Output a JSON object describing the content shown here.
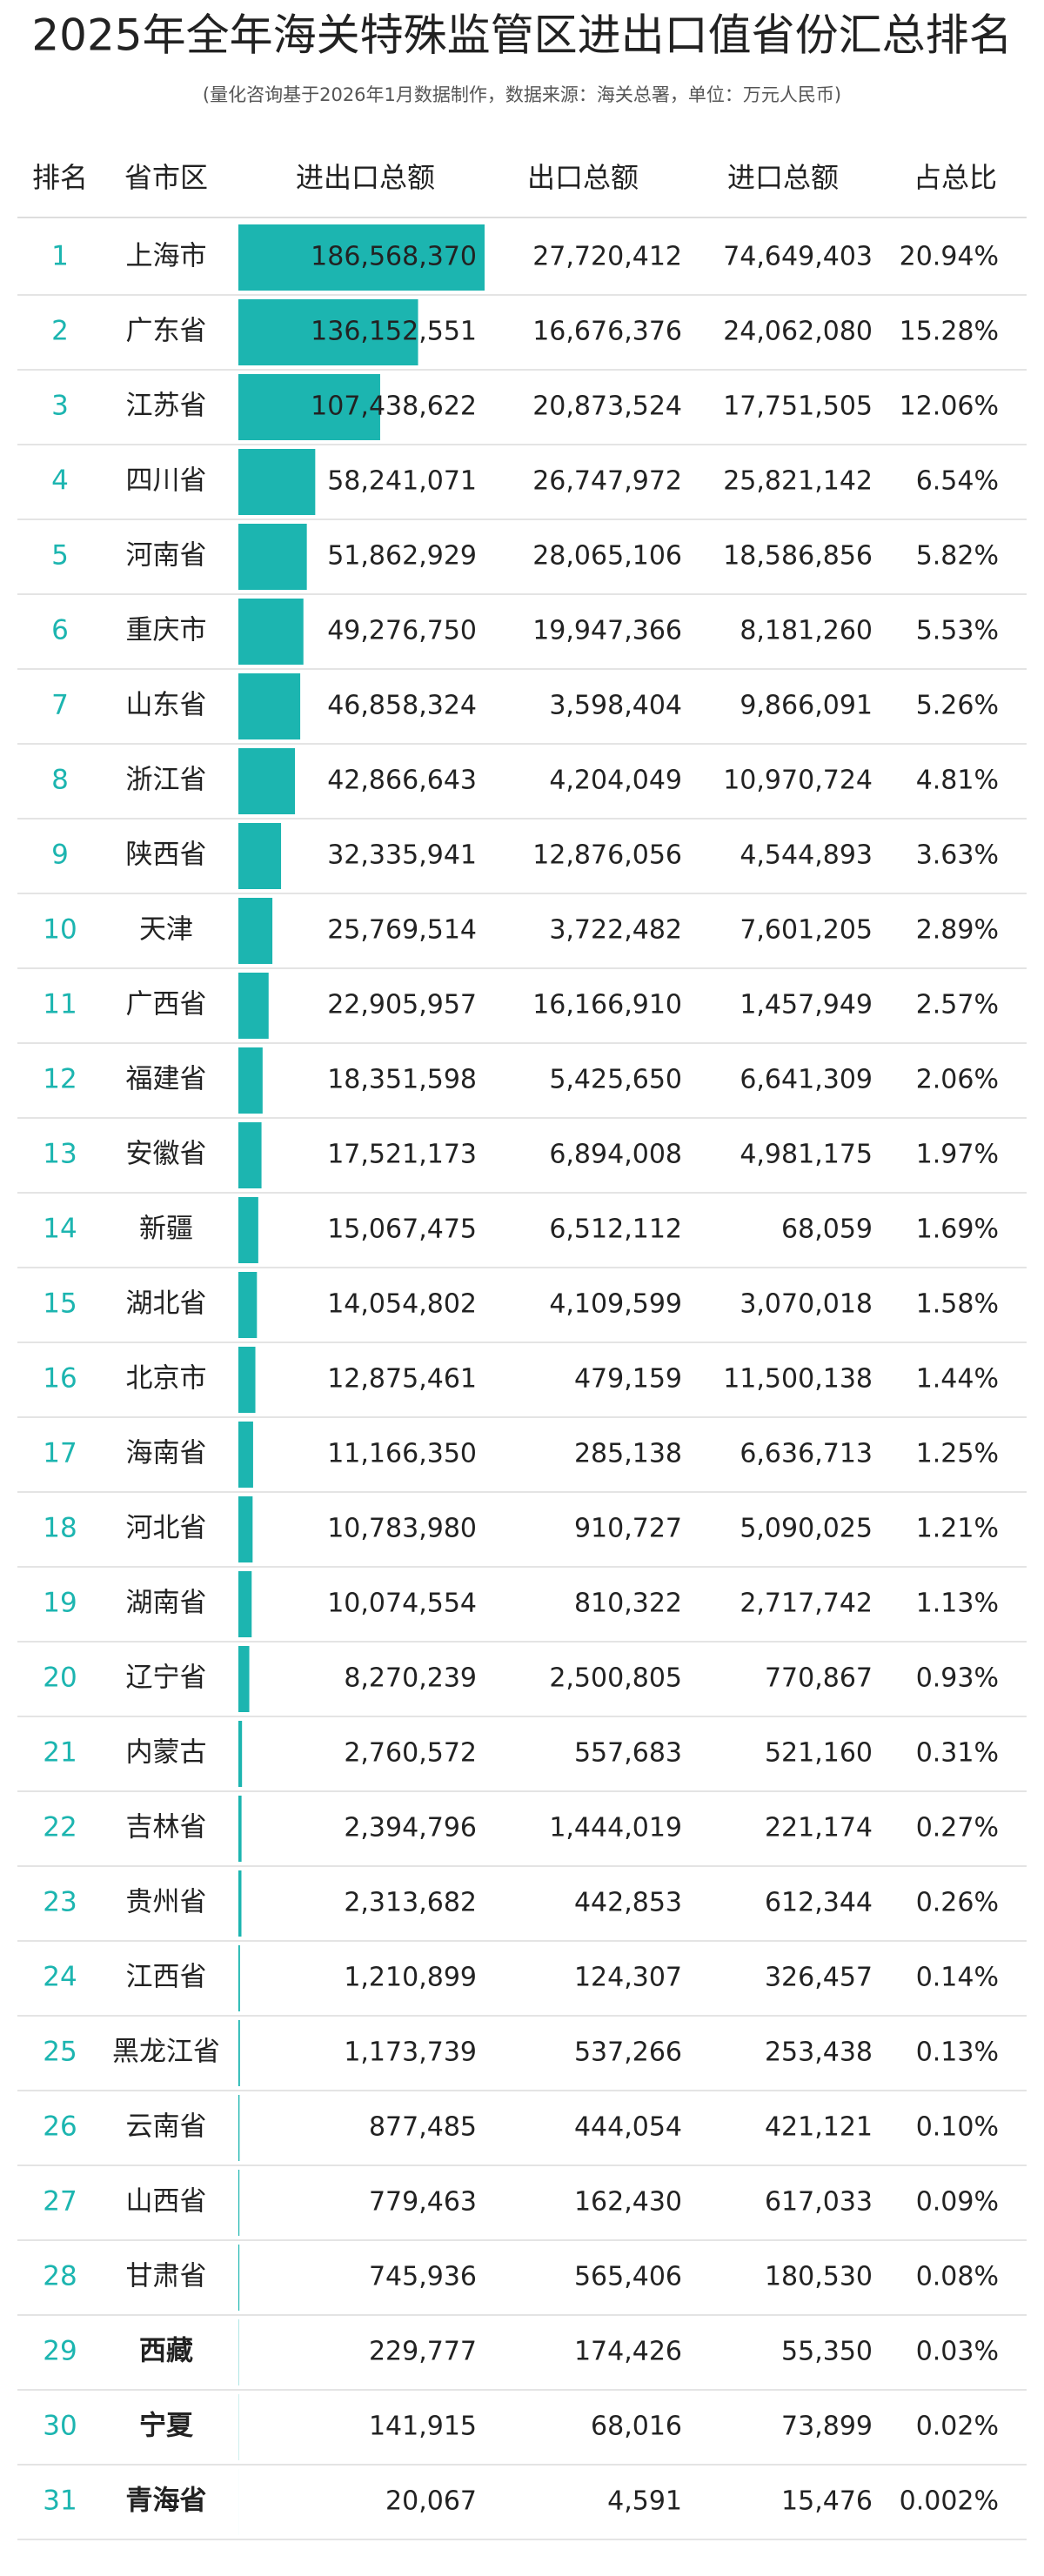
{
  "title": "2025年全年海关特殊监管区进出口值省份汇总排名",
  "subtitle": "(量化咨询基于2026年1月数据制作，数据来源：海关总署，单位：万元人民币)",
  "table": {
    "columns": [
      "排名",
      "省市区",
      "进出口总额",
      "出口总额",
      "进口总额",
      "占总比"
    ],
    "rows": [
      {
        "rank": 1,
        "name": "上海市",
        "total": {
          "value": 186568370,
          "label": "186,568,370"
        },
        "export": "27,720,412",
        "import": "74,649,403",
        "share": "20.94%"
      },
      {
        "rank": 2,
        "name": "广东省",
        "total": {
          "value": 136152551,
          "label": "136,152,551"
        },
        "export": "16,676,376",
        "import": "24,062,080",
        "share": "15.28%"
      },
      {
        "rank": 3,
        "name": "江苏省",
        "total": {
          "value": 107438622,
          "label": "107,438,622"
        },
        "export": "20,873,524",
        "import": "17,751,505",
        "share": "12.06%"
      },
      {
        "rank": 4,
        "name": "四川省",
        "total": {
          "value": 58241071,
          "label": "58,241,071"
        },
        "export": "26,747,972",
        "import": "25,821,142",
        "share": "6.54%"
      },
      {
        "rank": 5,
        "name": "河南省",
        "total": {
          "value": 51862929,
          "label": "51,862,929"
        },
        "export": "28,065,106",
        "import": "18,586,856",
        "share": "5.82%"
      },
      {
        "rank": 6,
        "name": "重庆市",
        "total": {
          "value": 49276750,
          "label": "49,276,750"
        },
        "export": "19,947,366",
        "import": "8,181,260",
        "share": "5.53%"
      },
      {
        "rank": 7,
        "name": "山东省",
        "total": {
          "value": 46858324,
          "label": "46,858,324"
        },
        "export": "3,598,404",
        "import": "9,866,091",
        "share": "5.26%"
      },
      {
        "rank": 8,
        "name": "浙江省",
        "total": {
          "value": 42866643,
          "label": "42,866,643"
        },
        "export": "4,204,049",
        "import": "10,970,724",
        "share": "4.81%"
      },
      {
        "rank": 9,
        "name": "陕西省",
        "total": {
          "value": 32335941,
          "label": "32,335,941"
        },
        "export": "12,876,056",
        "import": "4,544,893",
        "share": "3.63%"
      },
      {
        "rank": 10,
        "name": "天津",
        "total": {
          "value": 25769514,
          "label": "25,769,514"
        },
        "export": "3,722,482",
        "import": "7,601,205",
        "share": "2.89%"
      },
      {
        "rank": 11,
        "name": "广西省",
        "total": {
          "value": 22905957,
          "label": "22,905,957"
        },
        "export": "16,166,910",
        "import": "1,457,949",
        "share": "2.57%"
      },
      {
        "rank": 12,
        "name": "福建省",
        "total": {
          "value": 18351598,
          "label": "18,351,598"
        },
        "export": "5,425,650",
        "import": "6,641,309",
        "share": "2.06%"
      },
      {
        "rank": 13,
        "name": "安徽省",
        "total": {
          "value": 17521173,
          "label": "17,521,173"
        },
        "export": "6,894,008",
        "import": "4,981,175",
        "share": "1.97%"
      },
      {
        "rank": 14,
        "name": "新疆",
        "total": {
          "value": 15067475,
          "label": "15,067,475"
        },
        "export": "6,512,112",
        "import": "68,059",
        "share": "1.69%"
      },
      {
        "rank": 15,
        "name": "湖北省",
        "total": {
          "value": 14054802,
          "label": "14,054,802"
        },
        "export": "4,109,599",
        "import": "3,070,018",
        "share": "1.58%"
      },
      {
        "rank": 16,
        "name": "北京市",
        "total": {
          "value": 12875461,
          "label": "12,875,461"
        },
        "export": "479,159",
        "import": "11,500,138",
        "share": "1.44%"
      },
      {
        "rank": 17,
        "name": "海南省",
        "total": {
          "value": 11166350,
          "label": "11,166,350"
        },
        "export": "285,138",
        "import": "6,636,713",
        "share": "1.25%"
      },
      {
        "rank": 18,
        "name": "河北省",
        "total": {
          "value": 10783980,
          "label": "10,783,980"
        },
        "export": "910,727",
        "import": "5,090,025",
        "share": "1.21%"
      },
      {
        "rank": 19,
        "name": "湖南省",
        "total": {
          "value": 10074554,
          "label": "10,074,554"
        },
        "export": "810,322",
        "import": "2,717,742",
        "share": "1.13%"
      },
      {
        "rank": 20,
        "name": "辽宁省",
        "total": {
          "value": 8270239,
          "label": "8,270,239"
        },
        "export": "2,500,805",
        "import": "770,867",
        "share": "0.93%"
      },
      {
        "rank": 21,
        "name": "内蒙古",
        "total": {
          "value": 2760572,
          "label": "2,760,572"
        },
        "export": "557,683",
        "import": "521,160",
        "share": "0.31%"
      },
      {
        "rank": 22,
        "name": "吉林省",
        "total": {
          "value": 2394796,
          "label": "2,394,796"
        },
        "export": "1,444,019",
        "import": "221,174",
        "share": "0.27%"
      },
      {
        "rank": 23,
        "name": "贵州省",
        "total": {
          "value": 2313682,
          "label": "2,313,682"
        },
        "export": "442,853",
        "import": "612,344",
        "share": "0.26%"
      },
      {
        "rank": 24,
        "name": "江西省",
        "total": {
          "value": 1210899,
          "label": "1,210,899"
        },
        "export": "124,307",
        "import": "326,457",
        "share": "0.14%"
      },
      {
        "rank": 25,
        "name": "黑龙江省",
        "total": {
          "value": 1173739,
          "label": "1,173,739"
        },
        "export": "537,266",
        "import": "253,438",
        "share": "0.13%"
      },
      {
        "rank": 26,
        "name": "云南省",
        "total": {
          "value": 877485,
          "label": "877,485"
        },
        "export": "444,054",
        "import": "421,121",
        "share": "0.10%"
      },
      {
        "rank": 27,
        "name": "山西省",
        "total": {
          "value": 779463,
          "label": "779,463"
        },
        "export": "162,430",
        "import": "617,033",
        "share": "0.09%"
      },
      {
        "rank": 28,
        "name": "甘肃省",
        "total": {
          "value": 745936,
          "label": "745,936"
        },
        "export": "565,406",
        "import": "180,530",
        "share": "0.08%"
      },
      {
        "rank": 29,
        "name": "西藏",
        "total": {
          "value": 229777,
          "label": "229,777"
        },
        "export": "174,426",
        "import": "55,350",
        "share": "0.03%"
      },
      {
        "rank": 30,
        "name": "宁夏",
        "total": {
          "value": 141915,
          "label": "141,915"
        },
        "export": "68,016",
        "import": "73,899",
        "share": "0.02%"
      },
      {
        "rank": 31,
        "name": "青海省",
        "total": {
          "value": 20067,
          "label": "20,067"
        },
        "export": "4,591",
        "import": "15,476",
        "share": "0.002%"
      }
    ]
  }
}
